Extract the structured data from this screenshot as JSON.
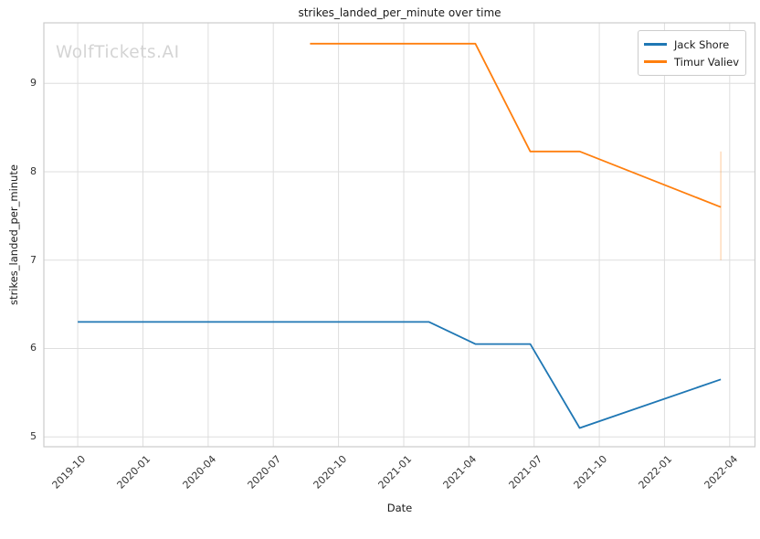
{
  "watermark": "WolfTickets.AI",
  "chart_data": {
    "type": "line",
    "title": "strikes_landed_per_minute over time",
    "xlabel": "Date",
    "ylabel": "strikes_landed_per_minute",
    "grid": true,
    "legend_position": "upper right",
    "xticks": [
      "2019-10",
      "2020-01",
      "2020-04",
      "2020-07",
      "2020-10",
      "2021-01",
      "2021-04",
      "2021-07",
      "2021-10",
      "2022-01",
      "2022-04"
    ],
    "yticks": [
      5,
      6,
      7,
      8,
      9
    ],
    "xlim_decimal_years": [
      2019.62,
      2022.347
    ],
    "ylim": [
      4.888,
      9.686
    ],
    "series": [
      {
        "name": "Jack Shore",
        "color": "#1f77b4",
        "points": [
          {
            "date": "2019-10-01",
            "value": 6.3
          },
          {
            "date": "2021-02-06",
            "value": 6.3
          },
          {
            "date": "2021-04-10",
            "value": 6.05
          },
          {
            "date": "2021-06-26",
            "value": 6.05
          },
          {
            "date": "2021-09-04",
            "value": 5.1
          },
          {
            "date": "2022-03-19",
            "value": 5.65
          }
        ]
      },
      {
        "name": "Timur Valiev",
        "color": "#ff7f0e",
        "points": [
          {
            "date": "2020-08-22",
            "value": 9.45
          },
          {
            "date": "2021-04-10",
            "value": 9.45
          },
          {
            "date": "2021-06-26",
            "value": 8.23
          },
          {
            "date": "2021-09-04",
            "value": 8.23
          },
          {
            "date": "2022-03-19",
            "value": 7.6
          }
        ]
      }
    ],
    "error_bar": {
      "series": "Timur Valiev",
      "date": "2022-03-19",
      "low": 7.0,
      "high": 8.23
    }
  }
}
